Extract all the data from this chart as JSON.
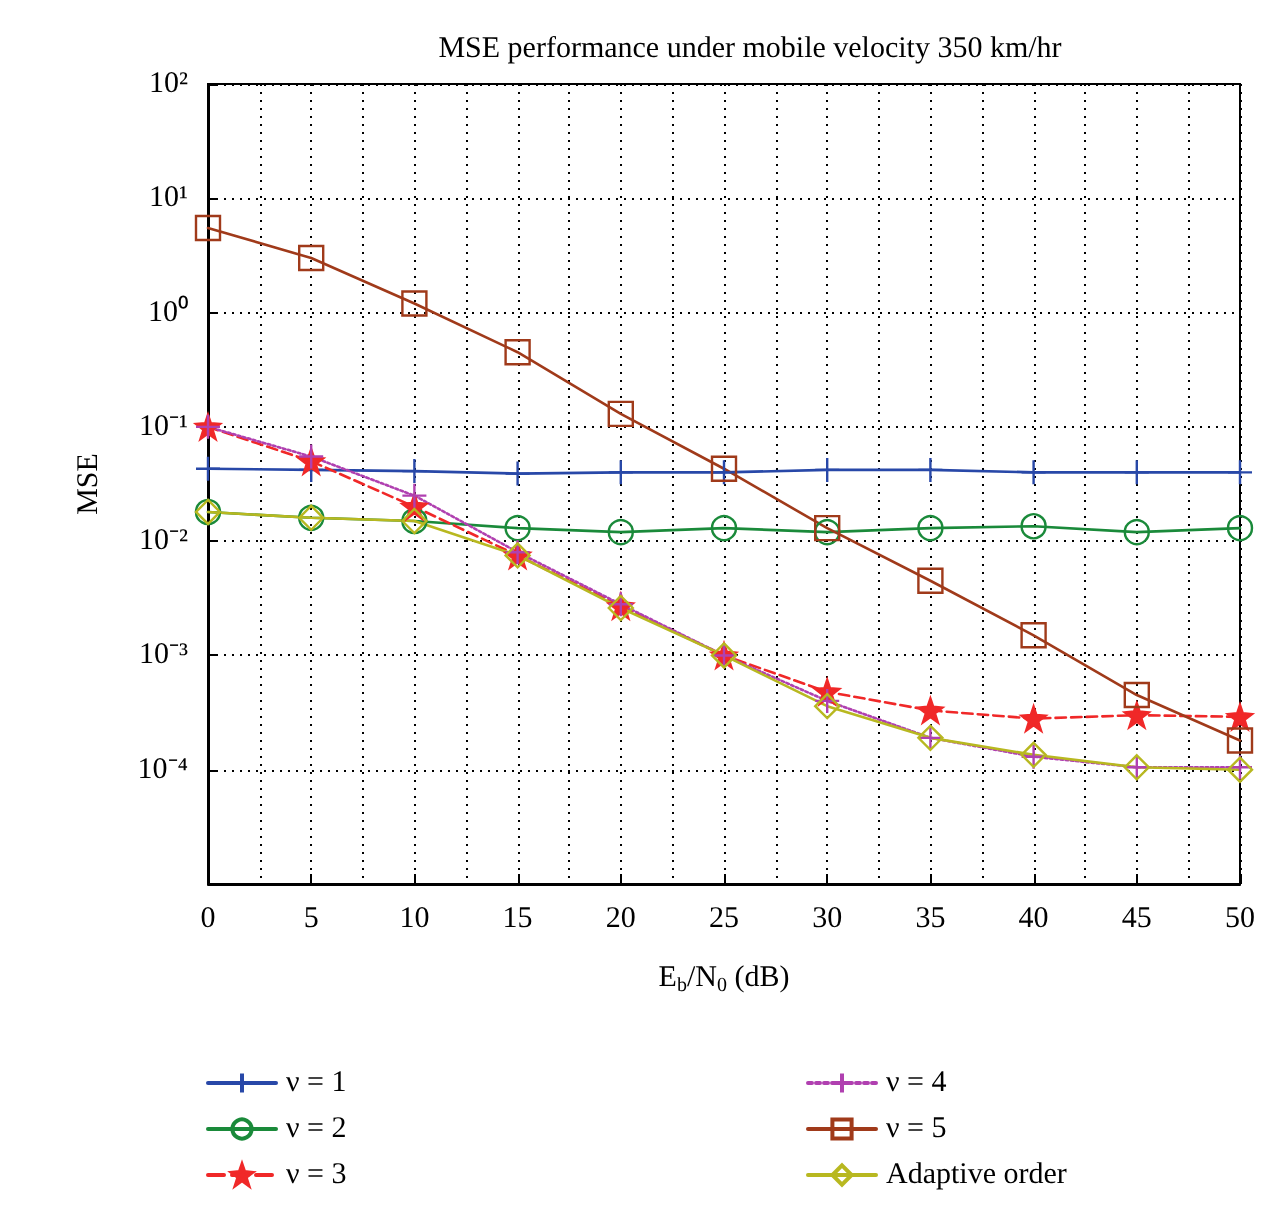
{
  "chart_data": {
    "type": "line",
    "title": "MSE performance under mobile velocity 350 km/hr",
    "xlabel": "E$_{b}$/N$_{0}$ (dB)",
    "ylabel": "MSE",
    "x": [
      0,
      5,
      10,
      15,
      20,
      25,
      30,
      35,
      40,
      45,
      50
    ],
    "log": "y",
    "xlim": [
      0,
      50
    ],
    "xticks": [
      0,
      5,
      10,
      15,
      20,
      25,
      30,
      35,
      40,
      45,
      50
    ],
    "ylim": [
      1e-05,
      100
    ],
    "yticks": [
      {
        "value": 1e-05,
        "label": null
      },
      {
        "value": 0.0001,
        "label": "10⁻⁴"
      },
      {
        "value": 0.001,
        "label": "10⁻³"
      },
      {
        "value": 0.01,
        "label": "10⁻²"
      },
      {
        "value": 0.1,
        "label": "10⁻¹"
      },
      {
        "value": 1,
        "label": "10⁰"
      },
      {
        "value": 10,
        "label": "10¹"
      },
      {
        "value": 100,
        "label": "10²"
      }
    ],
    "grid": true,
    "legend": "bottom",
    "series": [
      {
        "name": "ν = 1",
        "color": "#2848a8",
        "marker": "cross",
        "line_style": "solid",
        "values": [
          0.043,
          0.042,
          0.041,
          0.039,
          0.04,
          0.04,
          0.042,
          0.042,
          0.04,
          0.04,
          0.04
        ]
      },
      {
        "name": "ν = 2",
        "color": "#1a8a3a",
        "marker": "circle",
        "line_style": "solid",
        "values": [
          0.018,
          0.016,
          0.015,
          0.013,
          0.012,
          0.013,
          0.012,
          0.013,
          0.0135,
          0.012,
          0.013
        ]
      },
      {
        "name": "ν = 3",
        "color": "#f02828",
        "marker": "star",
        "line_style": "dashed",
        "values": [
          0.1,
          0.05,
          0.02,
          0.0075,
          0.0027,
          0.001,
          0.00048,
          0.00033,
          0.00028,
          0.0003,
          0.00029
        ]
      },
      {
        "name": "ν = 4",
        "color": "#b040b0",
        "marker": "cross",
        "line_style": "dotted",
        "values": [
          0.1,
          0.055,
          0.025,
          0.008,
          0.0028,
          0.001,
          0.0004,
          0.00019,
          0.00013,
          0.000105,
          0.000105
        ]
      },
      {
        "name": "ν = 5",
        "color": "#a03a1a",
        "marker": "square",
        "line_style": "solid",
        "values": [
          5.5,
          3,
          1.2,
          0.45,
          0.13,
          0.043,
          0.013,
          0.0045,
          0.0015,
          0.00045,
          0.00018
        ]
      },
      {
        "name": "Adaptive order",
        "color": "#b8b820",
        "marker": "diamond",
        "line_style": "solid",
        "values": [
          0.018,
          0.016,
          0.015,
          0.0075,
          0.0026,
          0.001,
          0.00036,
          0.00019,
          0.000135,
          0.000105,
          0.0001
        ]
      }
    ]
  }
}
